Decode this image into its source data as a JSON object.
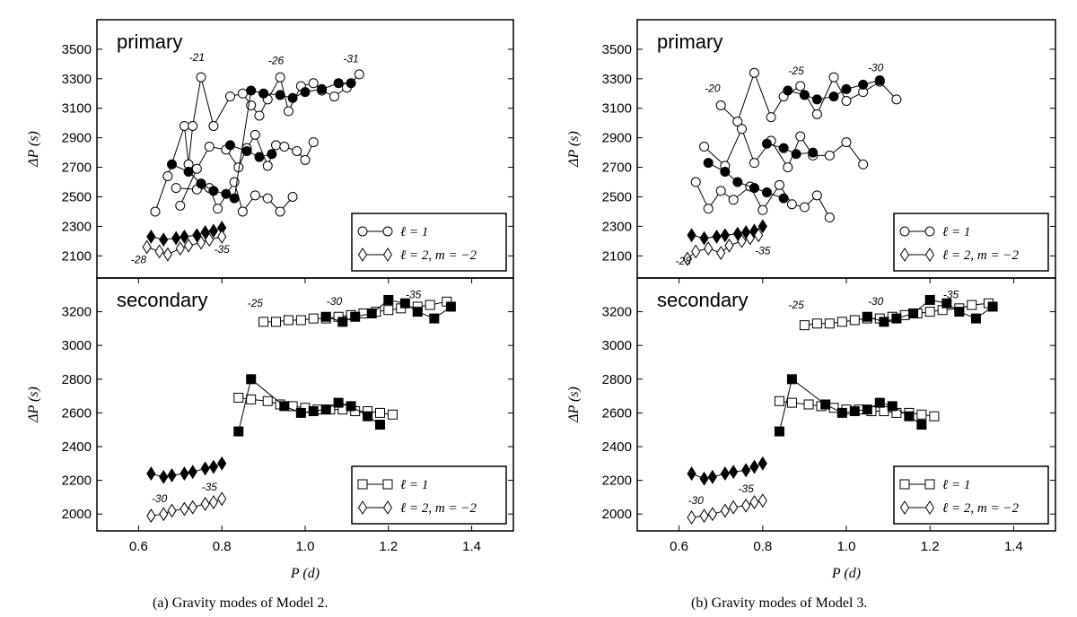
{
  "captions": {
    "a": "(a)  Gravity modes of Model 2.",
    "b": "(b)  Gravity modes of Model 3."
  },
  "chart_data": [
    {
      "type": "line",
      "panel": "a-primary",
      "title": "primary",
      "xlabel": "",
      "ylabel": "ΔP (s)",
      "xlim": [
        0.5,
        1.5
      ],
      "ylim": [
        1950,
        3700
      ],
      "yticks": [
        2100,
        2300,
        2500,
        2700,
        2900,
        3100,
        3300,
        3500
      ],
      "xticks": [],
      "legend": {
        "position": "bottom-right",
        "entries": [
          "ℓ = 1",
          "ℓ = 2, m = −2"
        ]
      },
      "annotations": [
        {
          "text": "-21",
          "x": 0.74,
          "y": 3420
        },
        {
          "text": "-26",
          "x": 0.93,
          "y": 3400
        },
        {
          "text": "-31",
          "x": 1.11,
          "y": 3410
        },
        {
          "text": "-28",
          "x": 0.6,
          "y": 2050
        },
        {
          "text": "-35",
          "x": 0.8,
          "y": 2120
        }
      ],
      "series": [
        {
          "name": "ℓ=1 open",
          "marker": "circle",
          "filled": false,
          "x": [
            0.64,
            0.67,
            0.71,
            0.72,
            0.73,
            0.75,
            0.78,
            0.82,
            0.85,
            0.87,
            0.89,
            0.91,
            0.94,
            0.96,
            0.99,
            1.02,
            1.04,
            1.07,
            1.1,
            1.13
          ],
          "y": [
            2400,
            2640,
            2980,
            2720,
            2980,
            3310,
            2980,
            3180,
            3200,
            3120,
            3050,
            3160,
            3310,
            3080,
            3250,
            3270,
            3220,
            3180,
            3240,
            3330
          ]
        },
        {
          "name": "ℓ=1 mid open",
          "marker": "circle",
          "filled": false,
          "x": [
            0.7,
            0.74,
            0.77,
            0.81,
            0.84,
            0.86,
            0.88,
            0.91,
            0.93,
            0.95,
            0.98,
            1.0,
            1.02
          ],
          "y": [
            2440,
            2690,
            2840,
            2820,
            2700,
            2830,
            2920,
            2710,
            2850,
            2840,
            2810,
            2750,
            2870
          ]
        },
        {
          "name": "ℓ=1 low open",
          "marker": "circle",
          "filled": false,
          "x": [
            0.69,
            0.74,
            0.77,
            0.79,
            0.83,
            0.85,
            0.88,
            0.91,
            0.94,
            0.97
          ],
          "y": [
            2560,
            2550,
            2560,
            2420,
            2600,
            2400,
            2510,
            2490,
            2400,
            2500
          ]
        },
        {
          "name": "ℓ=1 filled",
          "marker": "circle",
          "filled": true,
          "x": [
            0.68,
            0.72,
            0.75,
            0.78,
            0.81,
            0.83,
            0.87,
            0.9,
            0.94,
            0.97,
            1.0,
            1.04,
            1.08,
            1.11
          ],
          "y": [
            2720,
            2670,
            2590,
            2540,
            2520,
            2490,
            3220,
            3200,
            3190,
            3170,
            3210,
            3230,
            3270,
            3270
          ]
        },
        {
          "name": "ℓ=1 filled mid",
          "marker": "circle",
          "filled": true,
          "x": [
            0.82,
            0.86,
            0.89,
            0.92
          ],
          "y": [
            2850,
            2810,
            2770,
            2790
          ]
        },
        {
          "name": "ℓ=2 filled",
          "marker": "diamond",
          "filled": true,
          "x": [
            0.63,
            0.66,
            0.69,
            0.71,
            0.74,
            0.76,
            0.78,
            0.8
          ],
          "y": [
            2230,
            2210,
            2220,
            2230,
            2240,
            2260,
            2270,
            2290
          ]
        },
        {
          "name": "ℓ=2 open",
          "marker": "diamond",
          "filled": false,
          "x": [
            0.62,
            0.65,
            0.67,
            0.7,
            0.72,
            0.75,
            0.77,
            0.8
          ],
          "y": [
            2160,
            2130,
            2110,
            2150,
            2170,
            2190,
            2210,
            2230
          ]
        }
      ]
    },
    {
      "type": "line",
      "panel": "a-secondary",
      "title": "secondary",
      "xlabel": "P (d)",
      "ylabel": "ΔP (s)",
      "xlim": [
        0.5,
        1.5
      ],
      "ylim": [
        1900,
        3400
      ],
      "yticks": [
        2000,
        2200,
        2400,
        2600,
        2800,
        3000,
        3200
      ],
      "xticks": [
        0.6,
        0.8,
        1.0,
        1.2,
        1.4
      ],
      "legend": {
        "position": "bottom-right",
        "entries": [
          "ℓ = 1",
          "ℓ = 2, m = −2"
        ]
      },
      "annotations": [
        {
          "text": "-25",
          "x": 0.88,
          "y": 3230
        },
        {
          "text": "-30",
          "x": 1.07,
          "y": 3240
        },
        {
          "text": "-35",
          "x": 1.26,
          "y": 3280
        },
        {
          "text": "-30",
          "x": 0.65,
          "y": 2070
        },
        {
          "text": "-35",
          "x": 0.77,
          "y": 2140
        }
      ],
      "series": [
        {
          "name": "ℓ=1 open upper",
          "marker": "square",
          "filled": false,
          "x": [
            0.9,
            0.93,
            0.96,
            0.99,
            1.02,
            1.05,
            1.08,
            1.11,
            1.14,
            1.17,
            1.2,
            1.23,
            1.27,
            1.3,
            1.34
          ],
          "y": [
            3140,
            3140,
            3150,
            3150,
            3160,
            3160,
            3170,
            3180,
            3190,
            3200,
            3210,
            3220,
            3230,
            3240,
            3260
          ]
        },
        {
          "name": "ℓ=1 filled upper",
          "marker": "square",
          "filled": true,
          "x": [
            1.05,
            1.09,
            1.12,
            1.16,
            1.2,
            1.24,
            1.27,
            1.31,
            1.35
          ],
          "y": [
            3170,
            3140,
            3170,
            3190,
            3270,
            3250,
            3200,
            3160,
            3230
          ]
        },
        {
          "name": "ℓ=1 open lower",
          "marker": "square",
          "filled": false,
          "x": [
            0.84,
            0.87,
            0.91,
            0.94,
            0.97,
            1.0,
            1.03,
            1.06,
            1.09,
            1.12,
            1.15,
            1.18,
            1.21
          ],
          "y": [
            2690,
            2680,
            2670,
            2650,
            2640,
            2630,
            2620,
            2620,
            2620,
            2610,
            2610,
            2600,
            2590
          ]
        },
        {
          "name": "ℓ=1 filled lower",
          "marker": "square",
          "filled": true,
          "x": [
            0.84,
            0.87,
            0.95,
            0.99,
            1.02,
            1.05,
            1.08,
            1.11,
            1.15,
            1.18
          ],
          "y": [
            2490,
            2800,
            2640,
            2600,
            2610,
            2620,
            2660,
            2640,
            2580,
            2530
          ]
        },
        {
          "name": "ℓ=2 filled",
          "marker": "diamond",
          "filled": true,
          "x": [
            0.63,
            0.66,
            0.68,
            0.71,
            0.73,
            0.76,
            0.78,
            0.8
          ],
          "y": [
            2240,
            2220,
            2230,
            2240,
            2250,
            2270,
            2280,
            2300
          ]
        },
        {
          "name": "ℓ=2 open",
          "marker": "diamond",
          "filled": false,
          "x": [
            0.63,
            0.66,
            0.68,
            0.71,
            0.73,
            0.76,
            0.78,
            0.8
          ],
          "y": [
            1990,
            2000,
            2020,
            2030,
            2040,
            2060,
            2070,
            2090
          ]
        }
      ]
    },
    {
      "type": "line",
      "panel": "b-primary",
      "title": "primary",
      "xlabel": "",
      "ylabel": "ΔP (s)",
      "xlim": [
        0.5,
        1.5
      ],
      "ylim": [
        1950,
        3700
      ],
      "yticks": [
        2100,
        2300,
        2500,
        2700,
        2900,
        3100,
        3300,
        3500
      ],
      "xticks": [],
      "legend": {
        "position": "bottom-right",
        "entries": [
          "ℓ = 1",
          "ℓ = 2, m = −2"
        ]
      },
      "annotations": [
        {
          "text": "-20",
          "x": 0.68,
          "y": 3210
        },
        {
          "text": "-25",
          "x": 0.88,
          "y": 3330
        },
        {
          "text": "-30",
          "x": 1.07,
          "y": 3350
        },
        {
          "text": "-28",
          "x": 0.61,
          "y": 2040
        },
        {
          "text": "-35",
          "x": 0.8,
          "y": 2110
        }
      ],
      "series": [
        {
          "name": "ℓ=1 open upper",
          "marker": "circle",
          "filled": false,
          "x": [
            0.7,
            0.74,
            0.78,
            0.82,
            0.85,
            0.89,
            0.93,
            0.97,
            1.0,
            1.04,
            1.08,
            1.12
          ],
          "y": [
            3120,
            3010,
            3340,
            3040,
            3180,
            3250,
            3060,
            3310,
            3150,
            3210,
            3280,
            3160
          ]
        },
        {
          "name": "ℓ=1 open mid",
          "marker": "circle",
          "filled": false,
          "x": [
            0.66,
            0.71,
            0.75,
            0.78,
            0.82,
            0.86,
            0.89,
            0.92,
            0.96,
            1.0,
            1.04
          ],
          "y": [
            2840,
            2710,
            2960,
            2730,
            2880,
            2700,
            2910,
            2780,
            2780,
            2870,
            2720
          ]
        },
        {
          "name": "ℓ=1 open low",
          "marker": "circle",
          "filled": false,
          "x": [
            0.64,
            0.67,
            0.7,
            0.73,
            0.77,
            0.8,
            0.84,
            0.87,
            0.9,
            0.93,
            0.96
          ],
          "y": [
            2600,
            2420,
            2540,
            2480,
            2570,
            2410,
            2580,
            2450,
            2430,
            2510,
            2360
          ]
        },
        {
          "name": "ℓ=1 filled low",
          "marker": "circle",
          "filled": true,
          "x": [
            0.67,
            0.71,
            0.74,
            0.78,
            0.81,
            0.85
          ],
          "y": [
            2730,
            2670,
            2600,
            2560,
            2530,
            2490
          ]
        },
        {
          "name": "ℓ=1 filled mid",
          "marker": "circle",
          "filled": true,
          "x": [
            0.81,
            0.85,
            0.88,
            0.92
          ],
          "y": [
            2860,
            2830,
            2790,
            2800
          ]
        },
        {
          "name": "ℓ=1 filled upper",
          "marker": "circle",
          "filled": true,
          "x": [
            0.86,
            0.9,
            0.93,
            0.97,
            1.0,
            1.04,
            1.08
          ],
          "y": [
            3220,
            3190,
            3160,
            3180,
            3230,
            3260,
            3290
          ]
        },
        {
          "name": "ℓ=2 filled",
          "marker": "diamond",
          "filled": true,
          "x": [
            0.63,
            0.66,
            0.69,
            0.71,
            0.74,
            0.76,
            0.78,
            0.8
          ],
          "y": [
            2240,
            2220,
            2230,
            2240,
            2250,
            2260,
            2270,
            2300
          ]
        },
        {
          "name": "ℓ=2 open",
          "marker": "diamond",
          "filled": false,
          "x": [
            0.62,
            0.64,
            0.67,
            0.7,
            0.72,
            0.75,
            0.77,
            0.79
          ],
          "y": [
            2080,
            2130,
            2150,
            2120,
            2170,
            2200,
            2220,
            2240
          ]
        }
      ]
    },
    {
      "type": "line",
      "panel": "b-secondary",
      "title": "secondary",
      "xlabel": "P (d)",
      "ylabel": "ΔP (s)",
      "xlim": [
        0.5,
        1.5
      ],
      "ylim": [
        1900,
        3400
      ],
      "yticks": [
        2000,
        2200,
        2400,
        2600,
        2800,
        3000,
        3200
      ],
      "xticks": [
        0.6,
        0.8,
        1.0,
        1.2,
        1.4
      ],
      "legend": {
        "position": "bottom-right",
        "entries": [
          "ℓ = 1",
          "ℓ = 2, m = −2"
        ]
      },
      "annotations": [
        {
          "text": "-25",
          "x": 0.88,
          "y": 3220
        },
        {
          "text": "-30",
          "x": 1.07,
          "y": 3240
        },
        {
          "text": "-35",
          "x": 1.25,
          "y": 3280
        },
        {
          "text": "-30",
          "x": 0.64,
          "y": 2060
        },
        {
          "text": "-35",
          "x": 0.76,
          "y": 2130
        }
      ],
      "series": [
        {
          "name": "ℓ=1 open upper",
          "marker": "square",
          "filled": false,
          "x": [
            0.9,
            0.93,
            0.96,
            0.99,
            1.02,
            1.05,
            1.08,
            1.11,
            1.14,
            1.17,
            1.2,
            1.23,
            1.27,
            1.3,
            1.34
          ],
          "y": [
            3120,
            3130,
            3130,
            3140,
            3150,
            3160,
            3160,
            3170,
            3180,
            3190,
            3200,
            3210,
            3220,
            3240,
            3250
          ]
        },
        {
          "name": "ℓ=1 filled upper",
          "marker": "square",
          "filled": true,
          "x": [
            1.05,
            1.09,
            1.12,
            1.16,
            1.2,
            1.24,
            1.27,
            1.31,
            1.35
          ],
          "y": [
            3170,
            3140,
            3160,
            3190,
            3270,
            3250,
            3200,
            3160,
            3230
          ]
        },
        {
          "name": "ℓ=1 open lower",
          "marker": "square",
          "filled": false,
          "x": [
            0.84,
            0.87,
            0.91,
            0.94,
            0.97,
            1.0,
            1.03,
            1.06,
            1.09,
            1.12,
            1.15,
            1.18,
            1.21
          ],
          "y": [
            2670,
            2660,
            2650,
            2640,
            2630,
            2620,
            2620,
            2610,
            2610,
            2600,
            2600,
            2590,
            2580
          ]
        },
        {
          "name": "ℓ=1 filled lower",
          "marker": "square",
          "filled": true,
          "x": [
            0.84,
            0.87,
            0.95,
            0.99,
            1.02,
            1.05,
            1.08,
            1.11,
            1.15,
            1.18
          ],
          "y": [
            2490,
            2800,
            2650,
            2600,
            2610,
            2620,
            2660,
            2640,
            2580,
            2530
          ]
        },
        {
          "name": "ℓ=2 filled",
          "marker": "diamond",
          "filled": true,
          "x": [
            0.63,
            0.66,
            0.68,
            0.71,
            0.73,
            0.76,
            0.78,
            0.8
          ],
          "y": [
            2240,
            2210,
            2220,
            2240,
            2250,
            2260,
            2280,
            2300
          ]
        },
        {
          "name": "ℓ=2 open",
          "marker": "diamond",
          "filled": false,
          "x": [
            0.63,
            0.66,
            0.68,
            0.71,
            0.73,
            0.76,
            0.78,
            0.8
          ],
          "y": [
            1980,
            1990,
            2000,
            2020,
            2040,
            2050,
            2070,
            2080
          ]
        }
      ]
    }
  ]
}
